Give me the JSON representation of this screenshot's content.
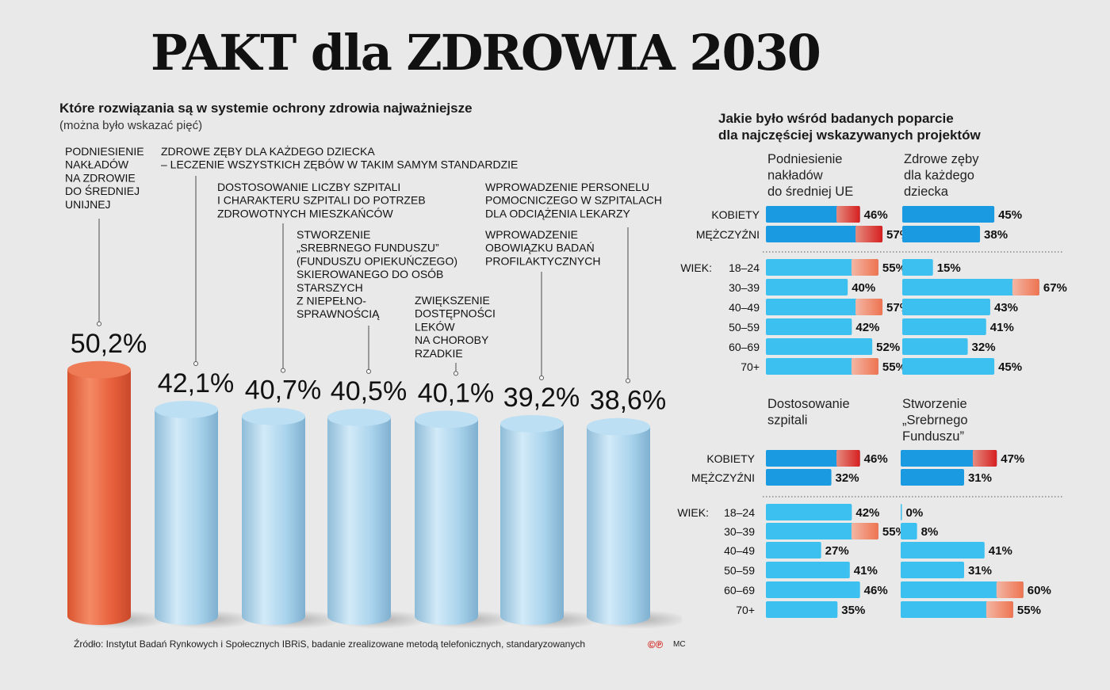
{
  "title": "PAKT dla ZDROWIA 2030",
  "main_question": "Które rozwiązania są w systemie ochrony zdrowia najważniejsze",
  "main_question_note": "(można było wskazać pięć)",
  "source": "Źródło: Instytut Badań Rynkowych i Społecznych IBRiS, badanie zrealizowane metodą telefonicznych, standaryzowanych",
  "logo": "©℗",
  "author": "MC",
  "right_title_line1": "Jakie było wśród badanych poparcie",
  "right_title_line2": "dla najczęściej wskazywanych projektów",
  "chart_data": [
    {
      "type": "bar",
      "categories": [
        "PODNIESIENIE NAKŁADÓW NA ZDROWIE DO ŚREDNIEJ UNIJNEJ",
        "ZDROWE ZĘBY DLA KAŻDEGO DZIECKA – LECZENIE WSZYSTKICH ZĘBÓW W TAKIM SAMYM STANDARDZIE",
        "DOSTOSOWANIE LICZBY SZPITALI I CHARAKTERU SZPITALI DO POTRZEB ZDROWOTNYCH MIESZKAŃCÓW",
        "STWORZENIE „SREBRNEGO FUNDUSZU” (FUNDUSZU OPIEKUŃCZEGO) SKIEROWANEGO DO OSÓB STARSZYCH Z NIEPEŁNO-SPRAWNOŚCIĄ",
        "ZWIĘKSZENIE DOSTĘPNOŚCI LEKÓW NA CHOROBY RZADKIE",
        "WPROWADZENIE OBOWIĄZKU BADAŃ PROFILAKTYCZNYCH",
        "WPROWADZENIE PERSONELU POMOCNICZEGO W SZPITALACH DLA ODCIĄŻENIA LEKARZY"
      ],
      "label_lines": [
        [
          "PODNIESIENIE",
          "NAKŁADÓW",
          "NA ZDROWIE",
          "DO ŚREDNIEJ",
          "UNIJNEJ"
        ],
        [
          "ZDROWE ZĘBY DLA KAŻDEGO DZIECKA",
          "– LECZENIE WSZYSTKICH ZĘBÓW W TAKIM SAMYM STANDARDZIE"
        ],
        [
          "DOSTOSOWANIE LICZBY SZPITALI",
          "I CHARAKTERU SZPITALI DO POTRZEB",
          "ZDROWOTNYCH MIESZKAŃCÓW"
        ],
        [
          "STWORZENIE",
          "„SREBRNEGO FUNDUSZU”",
          "(FUNDUSZU OPIEKUŃCZEGO)",
          "SKIEROWANEGO DO OSÓB",
          "STARSZYCH",
          "Z NIEPEŁNO-",
          "SPRAWNOŚCIĄ"
        ],
        [
          "ZWIĘKSZENIE",
          "DOSTĘPNOŚCI",
          "LEKÓW",
          "NA CHOROBY",
          "RZADKIE"
        ],
        [
          "WPROWADZENIE",
          "OBOWIĄZKU BADAŃ",
          "PROFILAKTYCZNYCH"
        ],
        [
          "WPROWADZENIE PERSONELU",
          "POMOCNICZEGO W SZPITALACH",
          "DLA ODCIĄŻENIA LEKARZY"
        ]
      ],
      "values": [
        50.2,
        42.1,
        40.7,
        40.5,
        40.1,
        39.2,
        38.6
      ],
      "value_labels": [
        "50,2%",
        "42,1%",
        "40,7%",
        "40,5%",
        "40,1%",
        "39,2%",
        "38,6%"
      ],
      "highlight_color": "#e8603c",
      "bar_color": "#a9d3ec"
    },
    {
      "type": "bar",
      "orientation": "horizontal",
      "row_labels": [
        "KOBIETY",
        "MĘŻCZYŹNI",
        "18–24",
        "30–39",
        "40–49",
        "50–59",
        "60–69",
        "70+"
      ],
      "age_prefix": "WIEK:",
      "panels": [
        {
          "name": "Podniesienie nakładów do średniej UE",
          "name_lines": [
            "Podniesienie",
            "nakładów",
            "do średniej UE"
          ],
          "values": [
            46,
            57,
            55,
            40,
            57,
            42,
            52,
            55
          ],
          "labels": [
            "46%",
            "57%",
            "55%",
            "40%",
            "57%",
            "42%",
            "52%",
            "55%"
          ]
        },
        {
          "name": "Zdrowe zęby dla każdego dziecka",
          "name_lines": [
            "Zdrowe zęby",
            "dla każdego",
            "dziecka"
          ],
          "values": [
            45,
            38,
            15,
            67,
            43,
            41,
            32,
            45
          ],
          "labels": [
            "45%",
            "38%",
            "15%",
            "67%",
            "43%",
            "41%",
            "32%",
            "45%"
          ]
        },
        {
          "name": "Dostosowanie szpitali",
          "name_lines": [
            "Dostosowanie",
            "szpitali"
          ],
          "values": [
            46,
            32,
            42,
            55,
            27,
            41,
            46,
            35
          ],
          "labels": [
            "46%",
            "32%",
            "42%",
            "55%",
            "27%",
            "41%",
            "46%",
            "35%"
          ]
        },
        {
          "name": "Stworzenie „Srebrnego Funduszu”",
          "name_lines": [
            "Stworzenie",
            "„Srebrnego",
            "Funduszu”"
          ],
          "values": [
            47,
            31,
            0,
            8,
            41,
            31,
            60,
            55
          ],
          "labels": [
            "47%",
            "31%",
            "0%",
            "8%",
            "41%",
            "31%",
            "60%",
            "55%"
          ]
        }
      ],
      "gender_bar_color": "#1a9ae0",
      "age_bar_color": "#3cc0f0",
      "hot_color": "#d61f1f"
    }
  ]
}
